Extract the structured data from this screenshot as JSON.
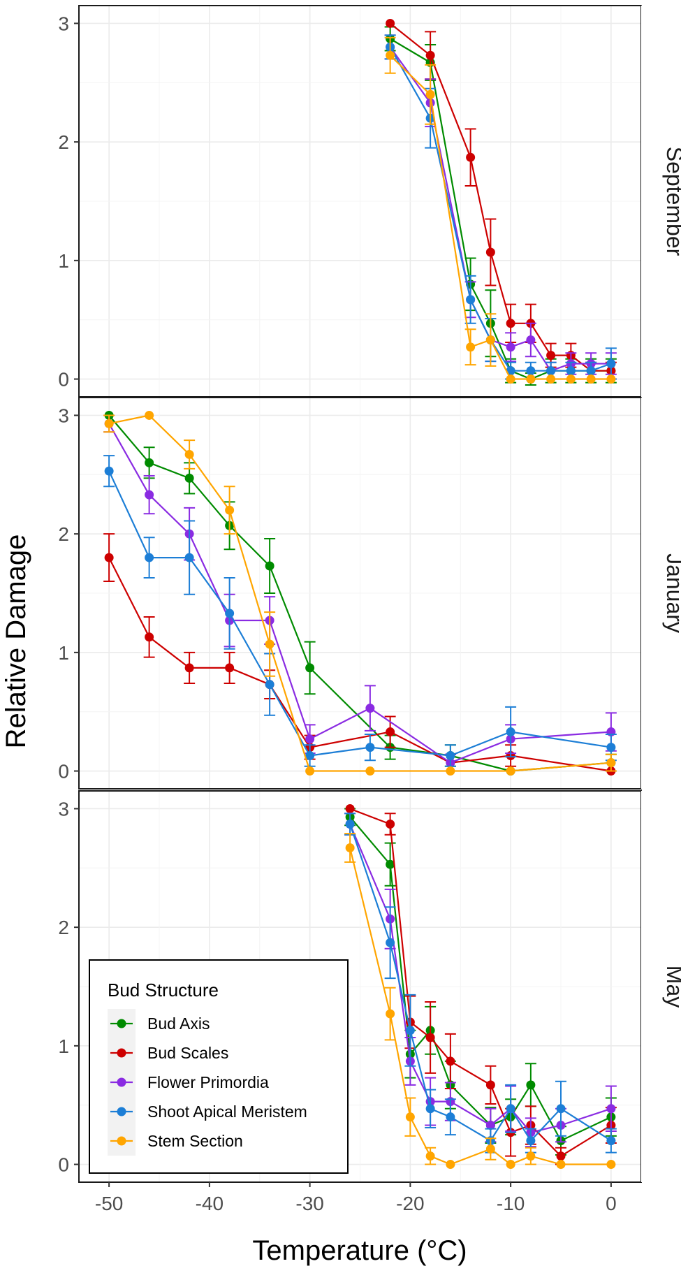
{
  "chart_data": {
    "type": "line",
    "xlabel": "Temperature (°C)",
    "ylabel": "Relative Damage",
    "xlim": [
      -53,
      3
    ],
    "ylim": [
      -0.15,
      3.15
    ],
    "x_ticks": [
      -50,
      -40,
      -30,
      -20,
      -10,
      0
    ],
    "x_tick_labels": [
      "-50",
      "-40",
      "-30",
      "-20",
      "-10",
      "0"
    ],
    "y_ticks": [
      0,
      1,
      2,
      3
    ],
    "y_tick_labels": [
      "0",
      "1",
      "2",
      "3"
    ],
    "grid": true,
    "legend": {
      "title": "Bud Structure",
      "position": "bottom-left of lowest panel"
    },
    "series_styles": [
      {
        "name": "Bud Axis",
        "color": "#008b00"
      },
      {
        "name": "Bud Scales",
        "color": "#cd0000"
      },
      {
        "name": "Flower Primordia",
        "color": "#8a2be2"
      },
      {
        "name": "Shoot Apical Meristem",
        "color": "#1c7ed6"
      },
      {
        "name": "Stem Section",
        "color": "#ffa500"
      }
    ],
    "panels": [
      {
        "label": "September",
        "series": [
          {
            "name": "Bud Axis",
            "x": [
              -22,
              -18,
              -14,
              -12,
              -10,
              -8,
              -6,
              -4,
              -2,
              0
            ],
            "y": [
              2.87,
              2.67,
              0.8,
              0.47,
              0.07,
              0.0,
              0.07,
              0.07,
              0.07,
              0.07
            ],
            "err": [
              0.1,
              0.15,
              0.22,
              0.28,
              0.1,
              0.05,
              0.1,
              0.1,
              0.1,
              0.1
            ]
          },
          {
            "name": "Bud Scales",
            "x": [
              -22,
              -18,
              -14,
              -12,
              -10,
              -8,
              -6,
              -4,
              -2,
              0
            ],
            "y": [
              3.0,
              2.73,
              1.87,
              1.07,
              0.47,
              0.47,
              0.2,
              0.2,
              0.07,
              0.07
            ],
            "err": [
              0.0,
              0.2,
              0.24,
              0.28,
              0.16,
              0.16,
              0.1,
              0.1,
              0.07,
              0.07
            ]
          },
          {
            "name": "Flower Primordia",
            "x": [
              -22,
              -18,
              -14,
              -12,
              -10,
              -8,
              -6,
              -4,
              -2,
              0
            ],
            "y": [
              2.8,
              2.33,
              0.67,
              0.33,
              0.27,
              0.33,
              0.07,
              0.13,
              0.13,
              0.13
            ],
            "err": [
              0.1,
              0.2,
              0.15,
              0.18,
              0.12,
              0.14,
              0.07,
              0.09,
              0.09,
              0.09
            ]
          },
          {
            "name": "Shoot Apical Meristem",
            "x": [
              -22,
              -18,
              -14,
              -12,
              -10,
              -8,
              -6,
              -4,
              -2,
              0
            ],
            "y": [
              2.8,
              2.2,
              0.67,
              0.33,
              0.07,
              0.07,
              0.07,
              0.07,
              0.07,
              0.13
            ],
            "err": [
              0.1,
              0.25,
              0.2,
              0.18,
              0.07,
              0.07,
              0.07,
              0.07,
              0.07,
              0.13
            ]
          },
          {
            "name": "Stem Section",
            "x": [
              -22,
              -18,
              -14,
              -12,
              -10,
              -8,
              -6,
              -4,
              -2,
              0
            ],
            "y": [
              2.73,
              2.4,
              0.27,
              0.33,
              0.0,
              0.0,
              0.0,
              0.0,
              0.0,
              0.0
            ],
            "err": [
              0.15,
              0.25,
              0.15,
              0.22,
              0.0,
              0.0,
              0.0,
              0.0,
              0.0,
              0.0
            ]
          }
        ]
      },
      {
        "label": "January",
        "series": [
          {
            "name": "Bud Axis",
            "x": [
              -50,
              -46,
              -42,
              -38,
              -34,
              -30,
              -22,
              -16,
              -10,
              0
            ],
            "y": [
              3.0,
              2.6,
              2.47,
              2.07,
              1.73,
              0.87,
              0.2,
              0.13,
              0.0,
              0.07
            ],
            "err": [
              0.0,
              0.13,
              0.13,
              0.2,
              0.23,
              0.22,
              0.1,
              0.09,
              0.0,
              0.07
            ]
          },
          {
            "name": "Bud Scales",
            "x": [
              -50,
              -46,
              -42,
              -38,
              -34,
              -30,
              -22,
              -16,
              -10,
              0
            ],
            "y": [
              1.8,
              1.13,
              0.87,
              0.87,
              0.73,
              0.2,
              0.33,
              0.07,
              0.13,
              0.0
            ],
            "err": [
              0.2,
              0.17,
              0.13,
              0.13,
              0.12,
              0.1,
              0.13,
              0.07,
              0.09,
              0.0
            ]
          },
          {
            "name": "Flower Primordia",
            "x": [
              -50,
              -46,
              -42,
              -38,
              -34,
              -30,
              -24,
              -16,
              -10,
              0
            ],
            "y": [
              2.93,
              2.33,
              2.0,
              1.27,
              1.27,
              0.27,
              0.53,
              0.07,
              0.27,
              0.33
            ],
            "err": [
              0.07,
              0.16,
              0.22,
              0.22,
              0.2,
              0.12,
              0.19,
              0.07,
              0.12,
              0.16
            ]
          },
          {
            "name": "Shoot Apical Meristem",
            "x": [
              -50,
              -46,
              -42,
              -38,
              -34,
              -30,
              -24,
              -16,
              -10,
              0
            ],
            "y": [
              2.53,
              1.8,
              1.8,
              1.33,
              0.73,
              0.13,
              0.2,
              0.13,
              0.33,
              0.2
            ],
            "err": [
              0.13,
              0.17,
              0.31,
              0.3,
              0.26,
              0.09,
              0.11,
              0.09,
              0.21,
              0.11
            ]
          },
          {
            "name": "Stem Section",
            "x": [
              -50,
              -46,
              -42,
              -38,
              -34,
              -30,
              -24,
              -16,
              -10,
              0
            ],
            "y": [
              2.93,
              3.0,
              2.67,
              2.2,
              1.07,
              0.0,
              0.0,
              0.0,
              0.0,
              0.07
            ],
            "err": [
              0.07,
              0.0,
              0.12,
              0.2,
              0.27,
              0.0,
              0.0,
              0.0,
              0.0,
              0.07
            ]
          }
        ]
      },
      {
        "label": "May",
        "series": [
          {
            "name": "Bud Axis",
            "x": [
              -26,
              -22,
              -20,
              -18,
              -16,
              -12,
              -10,
              -8,
              -5,
              0
            ],
            "y": [
              2.93,
              2.53,
              0.93,
              1.13,
              0.67,
              0.33,
              0.4,
              0.67,
              0.2,
              0.4
            ],
            "err": [
              0.07,
              0.18,
              0.2,
              0.2,
              0.2,
              0.15,
              0.15,
              0.18,
              0.12,
              0.16
            ]
          },
          {
            "name": "Bud Scales",
            "x": [
              -26,
              -22,
              -20,
              -18,
              -16,
              -12,
              -10,
              -8,
              -5,
              0
            ],
            "y": [
              3.0,
              2.87,
              1.2,
              1.07,
              0.87,
              0.67,
              0.27,
              0.33,
              0.07,
              0.33
            ],
            "err": [
              0.0,
              0.09,
              0.22,
              0.3,
              0.23,
              0.16,
              0.2,
              0.16,
              0.07,
              0.15
            ]
          },
          {
            "name": "Flower Primordia",
            "x": [
              -26,
              -22,
              -20,
              -18,
              -16,
              -12,
              -10,
              -8,
              -5,
              0
            ],
            "y": [
              2.87,
              2.07,
              0.87,
              0.53,
              0.53,
              0.33,
              0.47,
              0.27,
              0.33,
              0.47
            ],
            "err": [
              0.09,
              0.25,
              0.2,
              0.2,
              0.16,
              0.14,
              0.19,
              0.12,
              0.14,
              0.19
            ]
          },
          {
            "name": "Shoot Apical Meristem",
            "x": [
              -26,
              -22,
              -20,
              -18,
              -16,
              -12,
              -10,
              -8,
              -5,
              0
            ],
            "y": [
              2.87,
              1.87,
              1.13,
              0.47,
              0.4,
              0.2,
              0.47,
              0.2,
              0.47,
              0.2
            ],
            "err": [
              0.09,
              0.3,
              0.3,
              0.16,
              0.15,
              0.1,
              0.2,
              0.1,
              0.23,
              0.1
            ]
          },
          {
            "name": "Stem Section",
            "x": [
              -26,
              -22,
              -20,
              -18,
              -16,
              -12,
              -10,
              -8,
              -5,
              0
            ],
            "y": [
              2.67,
              1.27,
              0.4,
              0.07,
              0.0,
              0.13,
              0.0,
              0.07,
              0.0,
              0.0
            ],
            "err": [
              0.12,
              0.22,
              0.16,
              0.07,
              0.0,
              0.09,
              0.0,
              0.07,
              0.0,
              0.0
            ]
          }
        ]
      }
    ]
  }
}
